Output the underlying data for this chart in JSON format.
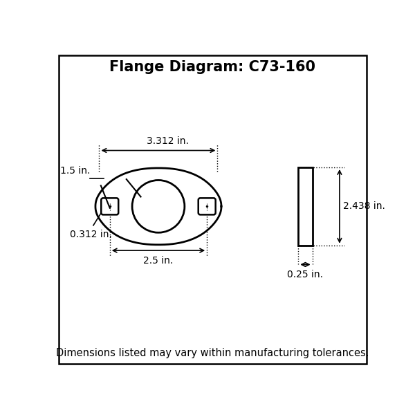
{
  "title": "Flange Diagram: C73-160",
  "title_fontsize": 15,
  "footnote": "Dimensions listed may vary within manufacturing tolerances.",
  "footnote_fontsize": 10.5,
  "dim_3312": "3.312 in.",
  "dim_15": "1.5 in.",
  "dim_0312": "0.312 in.",
  "dim_25": "2.5 in.",
  "dim_2438": "2.438 in.",
  "dim_025": "0.25 in.",
  "line_color": "#000000",
  "bg_color": "#ffffff",
  "border_color": "#000000",
  "label_fontsize": 10
}
